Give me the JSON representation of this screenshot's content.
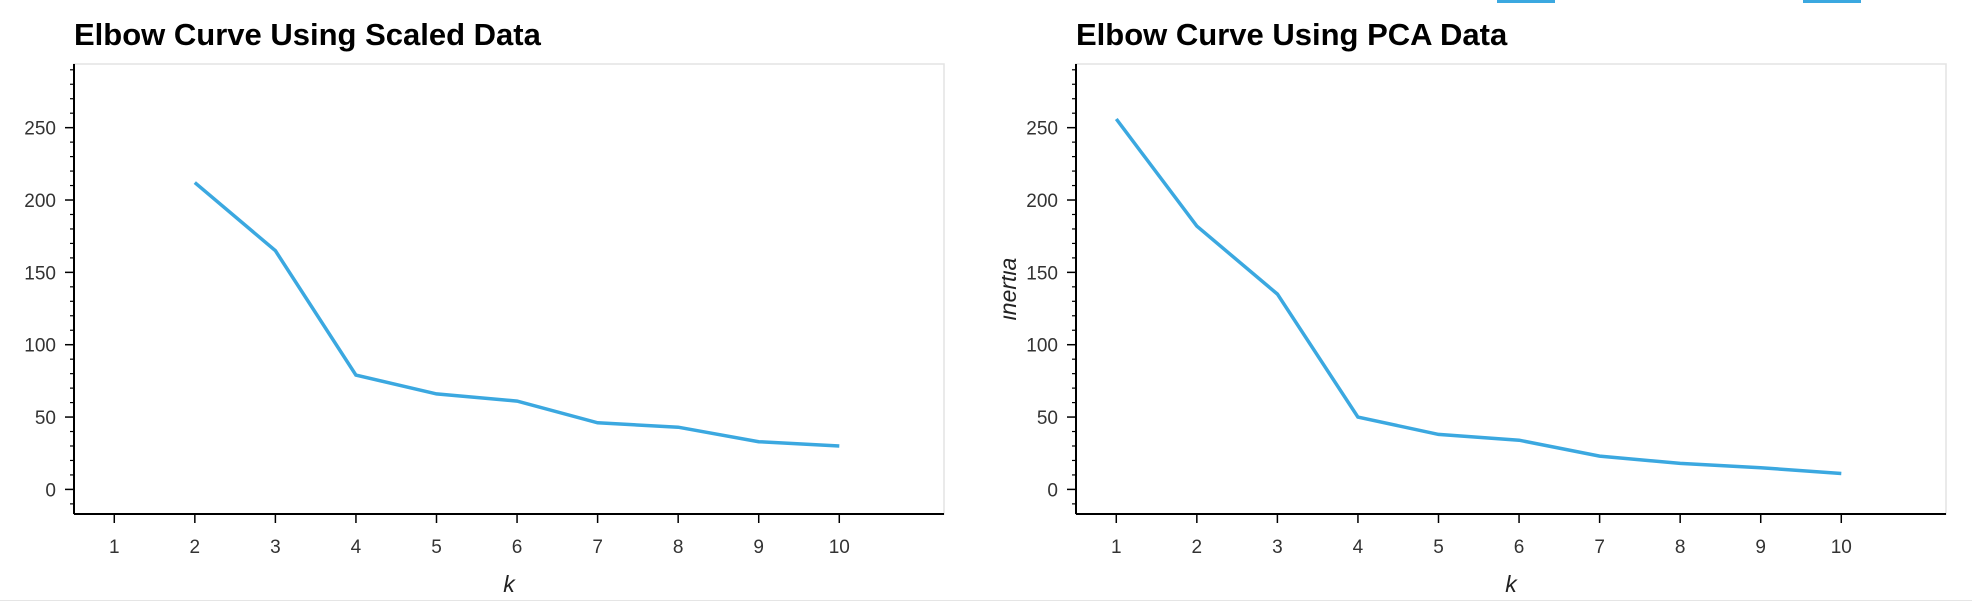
{
  "theme": {
    "line_color": "#3ba8e0",
    "frame_color": "#e3e3e3",
    "axis_color": "#000000"
  },
  "chart_data": [
    {
      "type": "line",
      "title": "Elbow Curve Using Scaled Data",
      "xlabel": "k",
      "ylabel": "",
      "x": [
        2,
        3,
        4,
        5,
        6,
        7,
        8,
        9,
        10
      ],
      "y": [
        212,
        165,
        79,
        66,
        61,
        46,
        43,
        33,
        30
      ],
      "x_ticks": [
        1,
        2,
        3,
        4,
        5,
        6,
        7,
        8,
        9,
        10
      ],
      "y_ticks": [
        0,
        50,
        100,
        150,
        200,
        250
      ],
      "xlim": [
        0.5,
        11.3
      ],
      "ylim": [
        -17,
        294
      ],
      "grid": false
    },
    {
      "type": "line",
      "title": "Elbow Curve Using PCA Data",
      "xlabel": "k",
      "ylabel": "inertia",
      "x": [
        1,
        2,
        3,
        4,
        5,
        6,
        7,
        8,
        9,
        10
      ],
      "y": [
        256,
        182,
        135,
        50,
        38,
        34,
        23,
        18,
        15,
        11
      ],
      "x_ticks": [
        1,
        2,
        3,
        4,
        5,
        6,
        7,
        8,
        9,
        10
      ],
      "y_ticks": [
        0,
        50,
        100,
        150,
        200,
        250
      ],
      "xlim": [
        0.5,
        11.3
      ],
      "ylim": [
        -17,
        294
      ],
      "grid": false
    }
  ]
}
